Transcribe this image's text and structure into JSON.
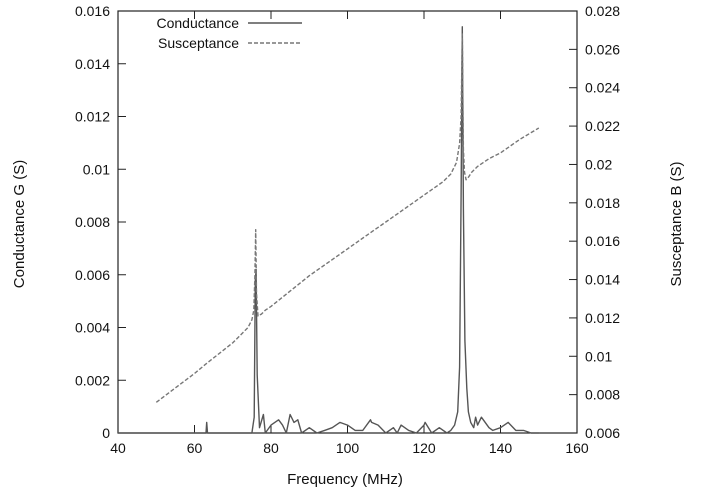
{
  "chart_data": {
    "type": "line",
    "title": "",
    "xlabel": "Frequency (MHz)",
    "ylabel_left": "Conductance G (S)",
    "ylabel_right": "Susceptance B (S)",
    "xlim": [
      40,
      160
    ],
    "ylim_left": [
      0,
      0.016
    ],
    "ylim_right": [
      0.006,
      0.028
    ],
    "x_ticks": [
      "40",
      "60",
      "80",
      "100",
      "120",
      "140",
      "160"
    ],
    "y_left_ticks": [
      "0",
      "0.002",
      "0.004",
      "0.006",
      "0.008",
      "0.01",
      "0.012",
      "0.014",
      "0.016"
    ],
    "y_right_ticks": [
      "0.006",
      "0.008",
      "0.01",
      "0.012",
      "0.014",
      "0.016",
      "0.018",
      "0.02",
      "0.022",
      "0.024",
      "0.026",
      "0.028"
    ],
    "grid": false,
    "legend_position": "top-left",
    "series": [
      {
        "name": "Conductance",
        "axis": "left",
        "style": "solid",
        "color": "#555555",
        "x": [
          40,
          50,
          63,
          63.2,
          63.4,
          75.0,
          75.6,
          75.9,
          76.1,
          76.4,
          77.0,
          78.0,
          78.5,
          80,
          82,
          83,
          84,
          85,
          86,
          87,
          88,
          90,
          92,
          94,
          96,
          98,
          100,
          102,
          104,
          106,
          106.3,
          108,
          110,
          112,
          113,
          114,
          116,
          118,
          120,
          120.3,
          122,
          124,
          126,
          127,
          128,
          128.8,
          129.3,
          129.7,
          130.0,
          130.3,
          130.7,
          131.2,
          131.6,
          132.2,
          133,
          133.5,
          134,
          135,
          136,
          137,
          138,
          140,
          142,
          144,
          146,
          148,
          150
        ],
        "y": [
          0,
          0,
          0,
          0.0004,
          0,
          0,
          0.0006,
          0.0058,
          0.0062,
          0.0022,
          0.0002,
          0.0007,
          0,
          0.0003,
          0.0005,
          0.0003,
          0,
          0.0007,
          0.0004,
          0.0005,
          0,
          0.0002,
          0,
          0.0001,
          0.0002,
          0.0004,
          0.0003,
          0.0001,
          0.0001,
          0.0005,
          0.0004,
          0.0003,
          0,
          0.0002,
          0,
          0.0003,
          0.0001,
          0,
          0.0003,
          0.0004,
          0,
          0.0002,
          0,
          0.0001,
          0.0003,
          0.0008,
          0.0025,
          0.009,
          0.0154,
          0.0085,
          0.0035,
          0.0017,
          0.0008,
          0.0004,
          0.0002,
          0.0006,
          0.0003,
          0.0006,
          0.0004,
          0.0002,
          0.0001,
          0.0002,
          0.0004,
          0.0001,
          0.0001,
          0,
          0
        ]
      },
      {
        "name": "Susceptance",
        "axis": "right",
        "style": "dashed",
        "color": "#777777",
        "x": [
          50,
          60,
          63,
          70,
          74,
          75.0,
          75.5,
          75.8,
          76.0,
          76.2,
          76.6,
          77.5,
          78.5,
          80,
          85,
          90,
          95,
          100,
          105,
          110,
          115,
          120,
          125,
          127,
          128.5,
          129.3,
          129.7,
          130.0,
          130.3,
          130.6,
          131.0,
          131.5,
          132.5,
          134,
          137,
          140,
          145,
          150
        ],
        "y": [
          0.0076,
          0.0091,
          0.0096,
          0.0107,
          0.0115,
          0.0119,
          0.0124,
          0.0142,
          0.0166,
          0.0133,
          0.0121,
          0.0122,
          0.0124,
          0.0126,
          0.0134,
          0.0142,
          0.0149,
          0.0156,
          0.0163,
          0.017,
          0.0177,
          0.0184,
          0.0191,
          0.0195,
          0.0201,
          0.0211,
          0.0225,
          0.0268,
          0.0208,
          0.0196,
          0.0192,
          0.0193,
          0.0196,
          0.0199,
          0.0203,
          0.0206,
          0.0213,
          0.0219
        ]
      }
    ]
  }
}
